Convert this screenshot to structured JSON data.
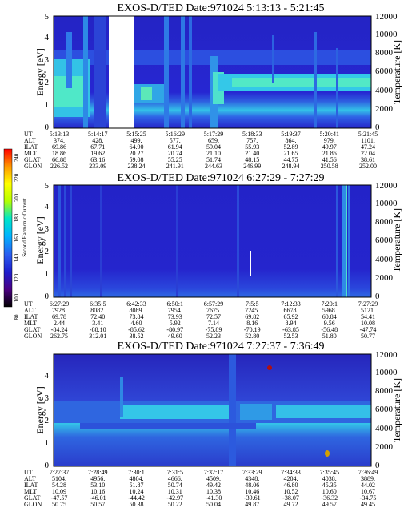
{
  "chart_data": [
    {
      "type": "heatmap",
      "title": "EXOS-D/TED   Date:971024  5:13:13 - 5:21:45",
      "ylabel": "Energy [eV]",
      "y2label": "Temperature [K]",
      "ylim": [
        0,
        5
      ],
      "y2lim": [
        0,
        12000
      ],
      "yticks": [
        "0",
        "1",
        "2",
        "3",
        "4",
        "5"
      ],
      "y2ticks": [
        "0",
        "2000",
        "4000",
        "6000",
        "8000",
        "10000",
        "12000"
      ],
      "ephemeris": {
        "labels": [
          "UT",
          "ALT",
          "ILAT",
          "MLT",
          "GLAT",
          "GLON"
        ],
        "rows": [
          [
            "5:13:13",
            "5:14:17",
            "5:15:25",
            "5:16:29",
            "5:17:29",
            "5:18:33",
            "5:19:37",
            "5:20:41",
            "5:21:45"
          ],
          [
            "374.",
            "428.",
            "499.",
            "577.",
            "659.",
            "757.",
            "864.",
            "979.",
            "1101."
          ],
          [
            "69.86",
            "67.71",
            "64.90",
            "61.94",
            "59.04",
            "55.93",
            "52.89",
            "49.97",
            "47.24"
          ],
          [
            "18.86",
            "19.62",
            "20.27",
            "20.74",
            "21.10",
            "21.40",
            "21.65",
            "21.86",
            "22.04"
          ],
          [
            "66.88",
            "63.16",
            "59.08",
            "55.25",
            "51.74",
            "48.15",
            "44.75",
            "41.56",
            "38.61"
          ],
          [
            "226.52",
            "233.09",
            "238.24",
            "241.91",
            "244.63",
            "246.99",
            "248.94",
            "250.58",
            "252.00"
          ]
        ]
      }
    },
    {
      "type": "heatmap",
      "title": "EXOS-D/TED   Date:971024  6:27:29 - 7:27:29",
      "ylabel": "Energy [eV]",
      "y2label": "Temperature [K]",
      "ylim": [
        0,
        5
      ],
      "y2lim": [
        0,
        12000
      ],
      "yticks": [
        "0",
        "1",
        "2",
        "3",
        "4",
        "5"
      ],
      "y2ticks": [
        "0",
        "2000",
        "4000",
        "6000",
        "8000",
        "10000",
        "12000"
      ],
      "ephemeris": {
        "labels": [
          "UT",
          "ALT",
          "ILAT",
          "MLT",
          "GLAT",
          "GLON"
        ],
        "rows": [
          [
            "6:27:29",
            "6:35:5",
            "6:42:33",
            "6:50:1",
            "6:57:29",
            "7:5:5",
            "7:12:33",
            "7:20:1",
            "7:27:29"
          ],
          [
            "7928.",
            "8082.",
            "8089.",
            "7954.",
            "7675.",
            "7245.",
            "6678.",
            "5968.",
            "5121."
          ],
          [
            "69.78",
            "72.40",
            "73.84",
            "73.93",
            "72.57",
            "69.82",
            "65.92",
            "60.84",
            "54.41"
          ],
          [
            "2.44",
            "3.41",
            "4.60",
            "5.92",
            "7.14",
            "8.16",
            "8.94",
            "9.56",
            "10.08"
          ],
          [
            "-84.24",
            "-88.10",
            "-85.62",
            "-80.97",
            "-75.89",
            "-70.19",
            "-63.85",
            "-56.48",
            "-47.74"
          ],
          [
            "262.75",
            "312.01",
            "38.52",
            "49.60",
            "52.23",
            "52.80",
            "52.53",
            "51.80",
            "50.77"
          ]
        ]
      }
    },
    {
      "type": "heatmap",
      "title": "EXOS-D/TED   Date:971024  7:27:37 - 7:36:49",
      "ylabel": "Energy [eV]",
      "y2label": "Temperature [K]",
      "ylim": [
        0,
        5
      ],
      "y2lim": [
        0,
        12000
      ],
      "yticks": [
        "0",
        "1",
        "2",
        "3",
        "4"
      ],
      "y2ticks": [
        "0",
        "2000",
        "4000",
        "6000",
        "8000",
        "10000",
        "12000"
      ],
      "ephemeris": {
        "labels": [
          "UT",
          "ALT",
          "ILAT",
          "MLT",
          "GLAT",
          "GLON"
        ],
        "rows": [
          [
            "7:27:37",
            "7:28:49",
            "7:30:1",
            "7:31:5",
            "7:32:17",
            "7:33:29",
            "7:34:33",
            "7:35:45",
            "7:36:49"
          ],
          [
            "5104.",
            "4956.",
            "4804.",
            "4666.",
            "4509.",
            "4348.",
            "4204.",
            "4038.",
            "3889."
          ],
          [
            "54.28",
            "53.10",
            "51.87",
            "50.74",
            "49.42",
            "48.06",
            "46.80",
            "45.35",
            "44.02"
          ],
          [
            "10.09",
            "10.16",
            "10.24",
            "10.31",
            "10.38",
            "10.46",
            "10.52",
            "10.60",
            "10.67"
          ],
          [
            "-47.57",
            "-46.01",
            "-44.42",
            "-42.97",
            "-41.30",
            "-39.61",
            "-38.07",
            "-36.32",
            "-34.75"
          ],
          [
            "50.75",
            "50.57",
            "50.38",
            "50.22",
            "50.04",
            "49.87",
            "49.72",
            "49.57",
            "49.45"
          ]
        ]
      }
    }
  ],
  "colorbar": {
    "label": "Second Harmonic Current",
    "ticks": [
      "80",
      "100",
      "120",
      "140",
      "160",
      "180",
      "200",
      "220",
      "240"
    ],
    "colors": [
      "#000000",
      "#4b0082",
      "#1e1ecd",
      "#2a5cf0",
      "#00b4ff",
      "#00e6c8",
      "#b4ff00",
      "#ffff00",
      "#ff9600",
      "#ff0000"
    ]
  }
}
